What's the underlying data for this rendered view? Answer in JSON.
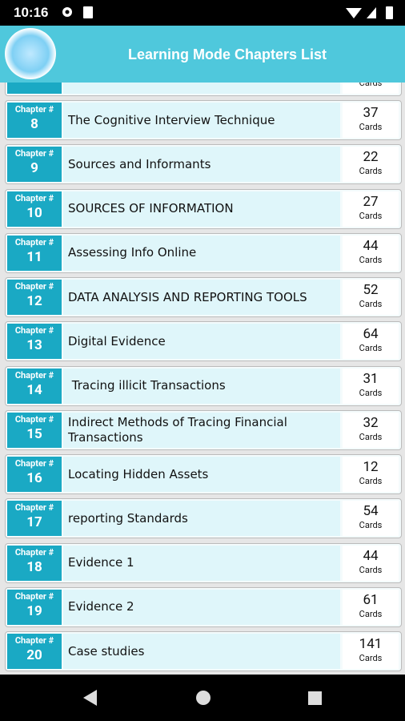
{
  "status_bar": {
    "time": "10:16"
  },
  "header": {
    "title": "Learning Mode Chapters List"
  },
  "chapter_label": "Chapter #",
  "unit_label": "Cards",
  "chapters": [
    {
      "number": 8,
      "title": "The Cognitive Interview Technique",
      "count": 37
    },
    {
      "number": 9,
      "title": "Sources and Informants",
      "count": 22
    },
    {
      "number": 10,
      "title": "SOURCES OF INFORMATION",
      "count": 27
    },
    {
      "number": 11,
      "title": "Assessing Info Online",
      "count": 44
    },
    {
      "number": 12,
      "title": "DATA ANALYSIS AND REPORTING TOOLS",
      "count": 52
    },
    {
      "number": 13,
      "title": "Digital Evidence",
      "count": 64
    },
    {
      "number": 14,
      "title": " Tracing illicit Transactions",
      "count": 31
    },
    {
      "number": 15,
      "title": "Indirect Methods of Tracing Financial Transactions",
      "count": 32
    },
    {
      "number": 16,
      "title": "Locating Hidden Assets",
      "count": 12
    },
    {
      "number": 17,
      "title": "reporting Standards",
      "count": 54
    },
    {
      "number": 18,
      "title": "Evidence 1",
      "count": 44
    },
    {
      "number": 19,
      "title": "Evidence 2",
      "count": 61
    },
    {
      "number": 20,
      "title": "Case studies",
      "count": 141
    }
  ]
}
